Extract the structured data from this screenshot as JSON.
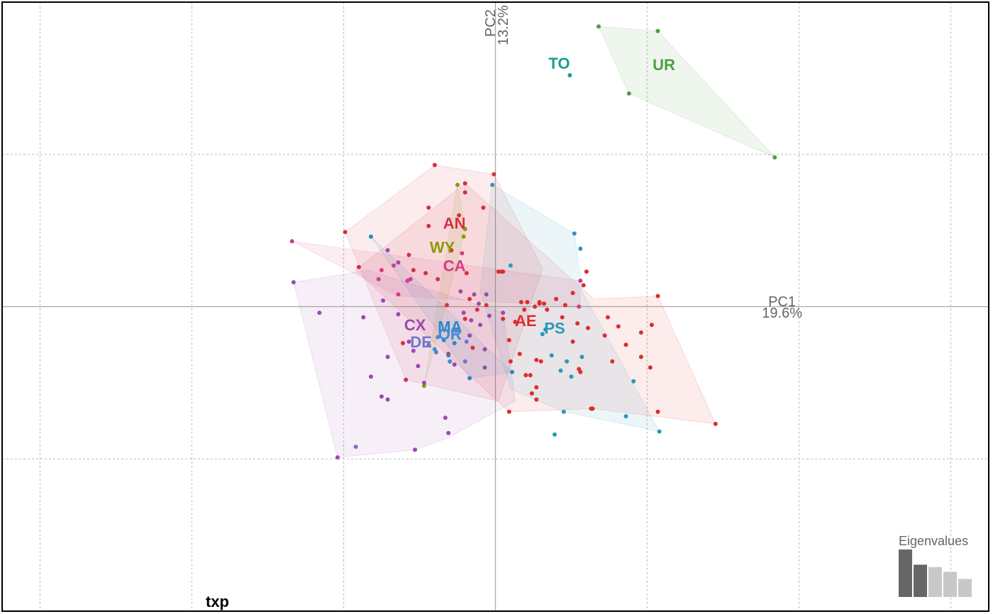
{
  "chart_data": {
    "type": "scatter",
    "panel_tag": "txp",
    "x_axis": {
      "name": "PC1",
      "percent": "19.6%"
    },
    "y_axis": {
      "name": "PC2",
      "percent": "13.2%"
    },
    "xlim": [
      -3.25,
      3.25
    ],
    "ylim": [
      -2.0,
      2.0
    ],
    "grid": true,
    "grid_step": 1,
    "eigenvalues": {
      "title": "Eigenvalues",
      "values": [
        1.0,
        0.68,
        0.63,
        0.53,
        0.38
      ],
      "highlighted": 2
    },
    "series": [
      {
        "name": "TO",
        "color": "#1a9e8f",
        "label_at": [
          0.42,
          1.59
        ],
        "points": [
          [
            0.49,
            1.52
          ]
        ]
      },
      {
        "name": "UR",
        "color": "#4e9e43",
        "label_at": [
          1.11,
          1.58
        ],
        "points": [
          [
            0.68,
            1.84
          ],
          [
            1.07,
            1.81
          ],
          [
            0.88,
            1.4
          ],
          [
            1.84,
            0.98
          ]
        ]
      },
      {
        "name": "WY",
        "color": "#8c9a00",
        "label_at": [
          -0.35,
          0.38
        ],
        "points": [
          [
            -0.25,
            0.8
          ],
          [
            -0.2,
            0.51
          ],
          [
            -0.21,
            0.46
          ],
          [
            -0.47,
            -0.52
          ]
        ]
      },
      {
        "name": "AN",
        "color": "#d63040",
        "label_at": [
          -0.27,
          0.54
        ],
        "points": [
          [
            -0.4,
            0.93
          ],
          [
            -0.2,
            0.81
          ],
          [
            -0.2,
            0.75
          ],
          [
            -0.01,
            0.87
          ],
          [
            -0.08,
            0.65
          ],
          [
            -0.44,
            0.65
          ],
          [
            -0.24,
            0.6
          ],
          [
            -0.99,
            0.49
          ],
          [
            -0.44,
            0.53
          ],
          [
            -0.29,
            0.37
          ],
          [
            -0.57,
            0.34
          ],
          [
            -0.54,
            0.24
          ],
          [
            -0.46,
            0.22
          ],
          [
            -0.38,
            0.18
          ],
          [
            -0.19,
            0.22
          ],
          [
            -0.9,
            0.26
          ],
          [
            -0.32,
            0.01
          ],
          [
            -0.17,
            0.05
          ],
          [
            -0.06,
            0.01
          ],
          [
            -0.12,
            -0.02
          ],
          [
            -0.2,
            -0.08
          ],
          [
            0.04,
            0.23
          ],
          [
            -0.61,
            -0.24
          ],
          [
            -0.31,
            -0.31
          ],
          [
            -0.3,
            -0.36
          ],
          [
            -0.59,
            -0.48
          ],
          [
            -0.15,
            -0.27
          ]
        ]
      },
      {
        "name": "AE",
        "color": "#dd2c2c",
        "label_at": [
          0.2,
          -0.1
        ],
        "points": [
          [
            0.02,
            0.23
          ],
          [
            0.05,
            0.23
          ],
          [
            0.46,
            0.01
          ],
          [
            0.58,
            0.14
          ],
          [
            0.6,
            0.23
          ],
          [
            0.51,
            0.09
          ],
          [
            0.4,
            0.05
          ],
          [
            0.32,
            0.02
          ],
          [
            0.29,
            0.03
          ],
          [
            0.17,
            0.03
          ],
          [
            0.19,
            -0.02
          ],
          [
            0.21,
            0.03
          ],
          [
            0.26,
            0.0
          ],
          [
            0.29,
            0.02
          ],
          [
            0.34,
            -0.02
          ],
          [
            0.05,
            -0.08
          ],
          [
            0.13,
            -0.1
          ],
          [
            0.09,
            -0.22
          ],
          [
            0.1,
            -0.36
          ],
          [
            0.16,
            -0.31
          ],
          [
            0.2,
            -0.45
          ],
          [
            0.27,
            -0.35
          ],
          [
            0.23,
            -0.45
          ],
          [
            0.3,
            -0.36
          ],
          [
            0.44,
            -0.07
          ],
          [
            0.54,
            -0.11
          ],
          [
            0.61,
            -0.14
          ],
          [
            0.51,
            -0.23
          ],
          [
            0.55,
            -0.41
          ],
          [
            0.56,
            -0.43
          ],
          [
            0.72,
            -0.19
          ],
          [
            0.74,
            -0.07
          ],
          [
            0.81,
            -0.13
          ],
          [
            0.86,
            -0.25
          ],
          [
            0.96,
            -0.17
          ],
          [
            0.77,
            -0.36
          ],
          [
            0.96,
            -0.33
          ],
          [
            1.07,
            0.07
          ],
          [
            1.02,
            -0.4
          ],
          [
            1.07,
            -0.69
          ],
          [
            1.03,
            -0.12
          ],
          [
            0.63,
            -0.67
          ],
          [
            0.27,
            -0.61
          ],
          [
            0.27,
            -0.53
          ],
          [
            0.24,
            -0.57
          ],
          [
            1.45,
            -0.77
          ],
          [
            0.64,
            -0.67
          ],
          [
            0.09,
            -0.69
          ]
        ]
      },
      {
        "name": "CA",
        "color": "#d63a8a",
        "label_at": [
          -0.27,
          0.26
        ],
        "points": [
          [
            -1.34,
            0.43
          ],
          [
            -0.75,
            0.24
          ],
          [
            -0.67,
            0.27
          ],
          [
            -0.64,
            0.08
          ],
          [
            -0.22,
            0.35
          ],
          [
            0.55,
            0.0
          ],
          [
            0.56,
            0.17
          ],
          [
            -0.58,
            0.17
          ],
          [
            -0.56,
            0.18
          ],
          [
            -0.77,
            0.18
          ]
        ]
      },
      {
        "name": "CX",
        "color": "#9a4ab0",
        "label_at": [
          -0.53,
          -0.13
        ],
        "points": [
          [
            -1.33,
            0.16
          ],
          [
            -1.16,
            -0.04
          ],
          [
            -0.87,
            -0.07
          ],
          [
            -0.74,
            0.04
          ],
          [
            -0.64,
            -0.05
          ],
          [
            -0.57,
            -0.23
          ],
          [
            -0.54,
            -0.29
          ],
          [
            -0.51,
            -0.39
          ],
          [
            -0.71,
            -0.33
          ],
          [
            -0.75,
            -0.59
          ],
          [
            -0.82,
            -0.46
          ],
          [
            -0.04,
            -0.06
          ],
          [
            -0.1,
            -0.12
          ],
          [
            -0.16,
            -0.09
          ],
          [
            -0.21,
            -0.04
          ],
          [
            -0.23,
            0.1
          ],
          [
            -0.14,
            0.08
          ],
          [
            -0.06,
            0.08
          ],
          [
            -0.11,
            0.02
          ],
          [
            0.05,
            -0.04
          ],
          [
            -0.17,
            -0.19
          ],
          [
            -0.07,
            -0.28
          ],
          [
            -0.31,
            -0.83
          ],
          [
            -0.33,
            -0.73
          ],
          [
            -0.53,
            -0.94
          ],
          [
            -0.71,
            -0.61
          ],
          [
            -1.04,
            -0.99
          ],
          [
            -0.64,
            0.29
          ],
          [
            -0.27,
            -0.38
          ],
          [
            -0.07,
            -0.4
          ],
          [
            -0.47,
            -0.5
          ],
          [
            -0.71,
            0.37
          ]
        ]
      },
      {
        "name": "DE",
        "color": "#7078cc",
        "label_at": [
          -0.49,
          -0.24
        ],
        "points": [
          [
            -0.92,
            -0.92
          ],
          [
            -0.44,
            -0.25
          ],
          [
            -0.39,
            -0.3
          ],
          [
            -0.26,
            -0.16
          ],
          [
            -0.19,
            -0.23
          ],
          [
            -0.2,
            -0.36
          ]
        ]
      },
      {
        "name": "MA",
        "color": "#2a88c8",
        "label_at": [
          -0.3,
          -0.14
        ],
        "points": [
          [
            -0.82,
            0.46
          ],
          [
            -0.34,
            -0.22
          ],
          [
            -0.31,
            -0.32
          ],
          [
            -0.17,
            -0.47
          ],
          [
            0.11,
            -0.43
          ],
          [
            -0.27,
            -0.24
          ]
        ]
      },
      {
        "name": "OR",
        "color": "#3a8fd8",
        "label_at": [
          -0.3,
          -0.19
        ],
        "points": [
          [
            -0.38,
            -0.2
          ],
          [
            -0.3,
            -0.36
          ],
          [
            -0.4,
            -0.28
          ]
        ]
      },
      {
        "name": "PS",
        "color": "#2a98b8",
        "label_at": [
          0.39,
          -0.15
        ],
        "points": [
          [
            -0.02,
            0.8
          ],
          [
            0.1,
            0.27
          ],
          [
            0.52,
            0.48
          ],
          [
            0.56,
            0.38
          ],
          [
            0.31,
            -0.18
          ],
          [
            0.33,
            -0.15
          ],
          [
            0.37,
            -0.32
          ],
          [
            0.47,
            -0.36
          ],
          [
            0.39,
            -0.84
          ],
          [
            0.45,
            -0.69
          ],
          [
            0.91,
            -0.49
          ],
          [
            0.86,
            -0.72
          ],
          [
            1.08,
            -0.82
          ],
          [
            0.43,
            -0.42
          ],
          [
            0.5,
            -0.46
          ],
          [
            0.57,
            -0.33
          ]
        ]
      }
    ],
    "hulls": [
      {
        "group": "UR",
        "color": "#4e9e43",
        "points": [
          [
            0.68,
            1.84
          ],
          [
            1.07,
            1.81
          ],
          [
            1.84,
            0.98
          ],
          [
            0.88,
            1.4
          ]
        ]
      },
      {
        "group": "AN",
        "color": "#d63040",
        "points": [
          [
            -0.4,
            0.93
          ],
          [
            -0.01,
            0.87
          ],
          [
            0.31,
            0.25
          ],
          [
            0.24,
            0.04
          ],
          [
            0.02,
            -0.62
          ],
          [
            -0.59,
            -0.48
          ],
          [
            -0.99,
            0.49
          ]
        ]
      },
      {
        "group": "AE",
        "color": "#dd2c2c",
        "points": [
          [
            -0.2,
            0.81
          ],
          [
            0.65,
            0.05
          ],
          [
            1.07,
            0.07
          ],
          [
            1.45,
            -0.77
          ],
          [
            0.64,
            -0.67
          ],
          [
            0.09,
            -0.69
          ],
          [
            -0.92,
            0.24
          ]
        ]
      },
      {
        "group": "CA",
        "color": "#d63a8a",
        "points": [
          [
            -1.34,
            0.43
          ],
          [
            0.55,
            0.17
          ],
          [
            0.56,
            0.0
          ],
          [
            -0.64,
            0.07
          ]
        ]
      },
      {
        "group": "WY",
        "color": "#8c9a00",
        "points": [
          [
            -0.25,
            0.8
          ],
          [
            -0.2,
            0.51
          ],
          [
            -0.21,
            0.46
          ],
          [
            -0.47,
            -0.52
          ]
        ]
      },
      {
        "group": "CX",
        "color": "#9a4ab0",
        "points": [
          [
            -1.33,
            0.16
          ],
          [
            -0.84,
            0.24
          ],
          [
            0.05,
            -0.04
          ],
          [
            0.13,
            -0.62
          ],
          [
            -0.31,
            -0.86
          ],
          [
            -0.53,
            -0.94
          ],
          [
            -1.04,
            -0.99
          ]
        ]
      },
      {
        "group": "MA",
        "color": "#2a88c8",
        "points": [
          [
            -0.82,
            0.46
          ],
          [
            0.11,
            -0.43
          ],
          [
            -0.17,
            -0.47
          ],
          [
            -0.34,
            -0.22
          ]
        ]
      },
      {
        "group": "PS",
        "color": "#2a98b8",
        "points": [
          [
            -0.02,
            0.8
          ],
          [
            0.52,
            0.48
          ],
          [
            0.57,
            0.1
          ],
          [
            1.08,
            -0.82
          ],
          [
            0.45,
            -0.69
          ],
          [
            0.1,
            -0.54
          ],
          [
            -0.1,
            0.1
          ]
        ]
      }
    ]
  }
}
